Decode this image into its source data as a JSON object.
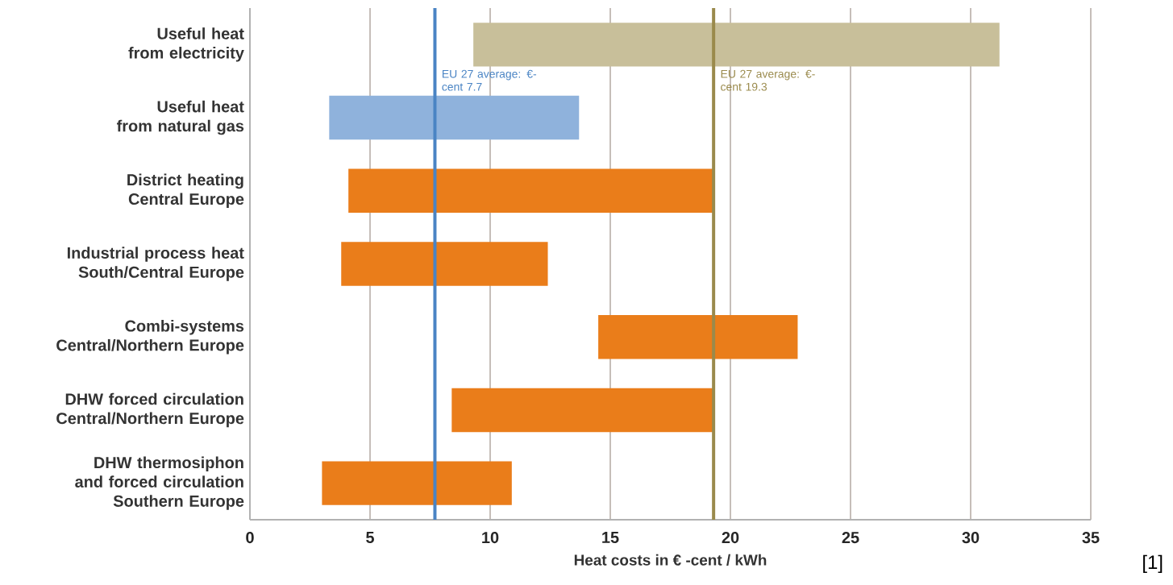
{
  "chart_data": {
    "type": "bar",
    "orientation": "horizontal",
    "xlabel": "Heat costs in € -cent / kWh",
    "categories": [
      "Useful heat from electricity",
      "Useful heat from natural gas",
      "District heating Central Europe",
      "Industrial process heat South/Central Europe",
      "Combi-systems Central/Northern Europe",
      "DHW forced circulation Central/Northern Europe",
      "DHW thermosiphon and forced circulation Southern Europe"
    ],
    "base": [
      9.3,
      3.3,
      4.1,
      3.8,
      14.5,
      8.4,
      3.0
    ],
    "values": [
      21.9,
      10.4,
      15.2,
      8.6,
      8.3,
      10.9,
      7.9
    ],
    "colors": [
      "#c8bf9a",
      "#8fb2dc",
      "#ea7d1a",
      "#ea7d1a",
      "#ea7d1a",
      "#ea7d1a",
      "#ea7d1a"
    ],
    "xlim": [
      0,
      35
    ],
    "xticks": [
      0,
      5,
      10,
      15,
      20,
      25,
      30,
      35
    ],
    "grid": "x",
    "ref_lines": [
      {
        "axis": "x",
        "value": 7.7,
        "label": "EU 27 average: €-cent 7.7",
        "color": "#4a84c4"
      },
      {
        "axis": "x",
        "value": 19.3,
        "label": "EU 27 average: €-cent 19.3",
        "color": "#9a8a4c"
      }
    ],
    "annotations": [
      "[1]"
    ]
  }
}
